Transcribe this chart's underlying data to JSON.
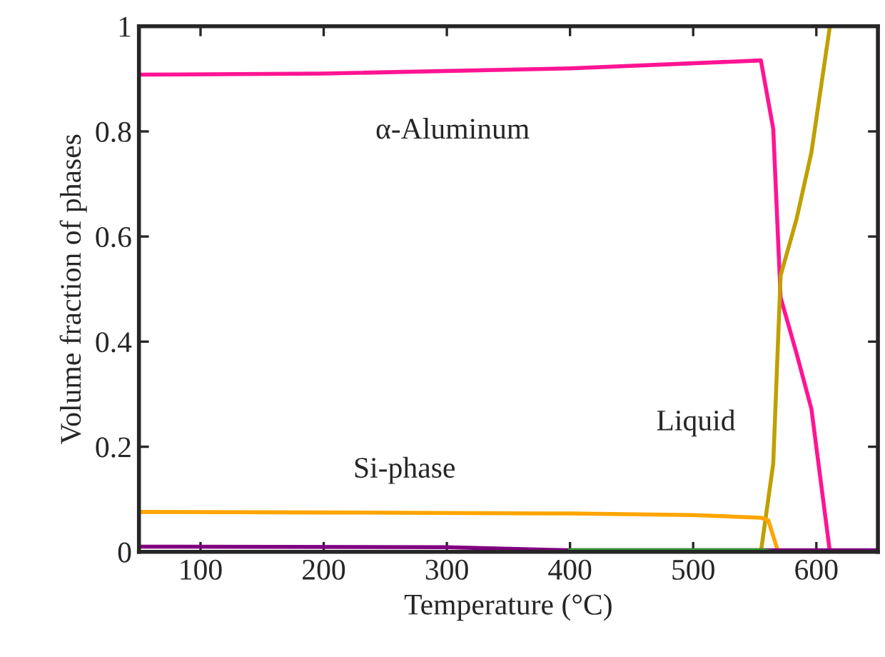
{
  "chart_data": {
    "type": "line",
    "xlabel": "Temperature (°C)",
    "ylabel": "Volume fraction of phases",
    "xlim": [
      50,
      650
    ],
    "ylim": [
      0,
      1
    ],
    "xticks": [
      100,
      200,
      300,
      400,
      500,
      600
    ],
    "yticks": [
      0,
      0.2,
      0.4,
      0.6,
      0.8,
      1
    ],
    "grid": false,
    "marker": "none",
    "line_style": "solid",
    "series": [
      {
        "name": "α-Aluminum",
        "color": "#ff1493",
        "x": [
          50,
          200,
          400,
          555,
          565,
          571,
          584,
          596,
          611
        ],
        "values": [
          0.908,
          0.91,
          0.92,
          0.935,
          0.805,
          0.484,
          0.377,
          0.272,
          0
        ]
      },
      {
        "name": "Liquid",
        "color": "#c0a000",
        "x": [
          555,
          565,
          571,
          584,
          596,
          611
        ],
        "values": [
          0,
          0.168,
          0.526,
          0.634,
          0.76,
          1.0
        ]
      },
      {
        "name": "Si-phase",
        "color": "#ffa500",
        "x": [
          50,
          200,
          400,
          500,
          555,
          561,
          569
        ],
        "values": [
          0.076,
          0.075,
          0.073,
          0.07,
          0.065,
          0.06,
          0
        ]
      },
      {
        "color": "#800080",
        "x": [
          50,
          300,
          400,
          650
        ],
        "values": [
          0.01,
          0.009,
          0.003,
          0.003
        ]
      },
      {
        "color": "#2ca02c",
        "x": [
          400,
          555,
          565,
          650
        ],
        "values": [
          0.003,
          0.003,
          0,
          0
        ]
      }
    ]
  }
}
